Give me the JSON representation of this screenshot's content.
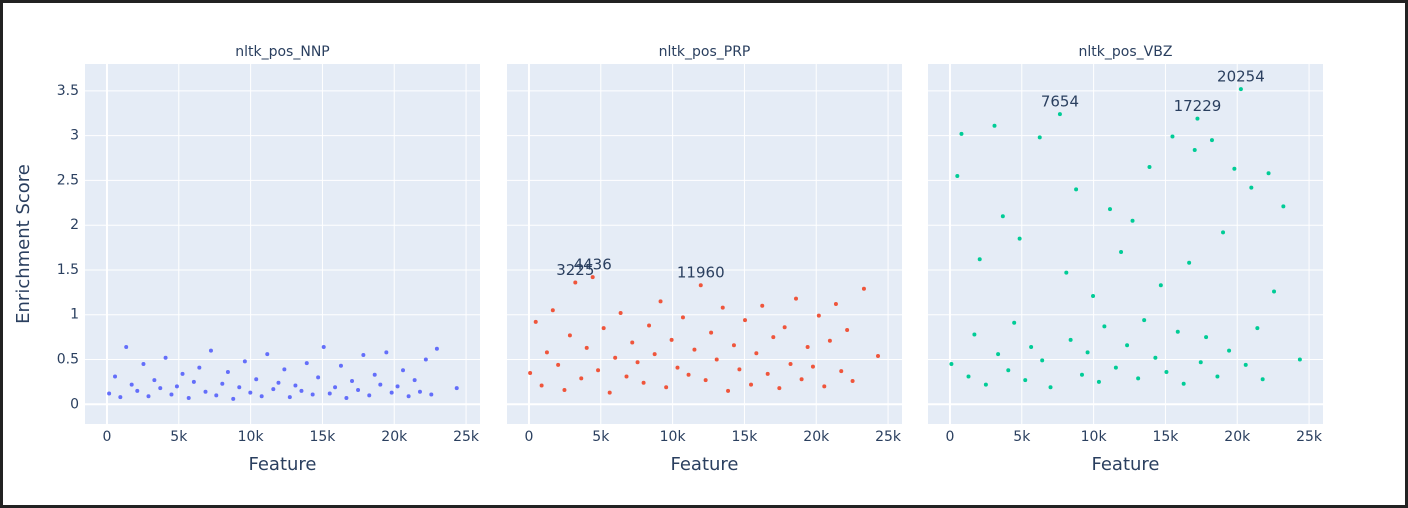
{
  "chart_data": [
    {
      "type": "scatter",
      "title": "nltk_pos_NNP",
      "x_label": "Feature",
      "y_label": "Enrichment Score",
      "color": "#636efa",
      "x": [
        150,
        560,
        930,
        1340,
        1720,
        2110,
        2540,
        2890,
        3300,
        3710,
        4080,
        4490,
        4870,
        5260,
        5690,
        6050,
        6430,
        6860,
        7240,
        7610,
        8030,
        8420,
        8790,
        9210,
        9600,
        9980,
        10390,
        10770,
        11160,
        11580,
        11940,
        12350,
        12730,
        13120,
        13540,
        13910,
        14320,
        14700,
        15090,
        15510,
        15880,
        16290,
        16670,
        17060,
        17480,
        17850,
        18260,
        18640,
        19030,
        19450,
        19820,
        20230,
        20610,
        21000,
        21420,
        21790,
        22200,
        22580,
        22970,
        24350
      ],
      "values": [
        0.12,
        0.31,
        0.08,
        0.64,
        0.22,
        0.15,
        0.45,
        0.09,
        0.27,
        0.18,
        0.52,
        0.11,
        0.2,
        0.34,
        0.07,
        0.25,
        0.41,
        0.14,
        0.6,
        0.1,
        0.23,
        0.36,
        0.06,
        0.19,
        0.48,
        0.13,
        0.28,
        0.09,
        0.56,
        0.17,
        0.24,
        0.39,
        0.08,
        0.21,
        0.15,
        0.46,
        0.11,
        0.3,
        0.64,
        0.12,
        0.19,
        0.43,
        0.07,
        0.26,
        0.16,
        0.55,
        0.1,
        0.33,
        0.22,
        0.58,
        0.13,
        0.2,
        0.38,
        0.09,
        0.27,
        0.14,
        0.5,
        0.11,
        0.62,
        0.18
      ],
      "xlim": [
        -1530,
        25970
      ],
      "ylim": [
        -0.22,
        3.8
      ],
      "grid": true,
      "xticks": [
        0,
        {
          "value": 5000,
          "label": "5k"
        },
        {
          "value": 10000,
          "label": "10k"
        },
        {
          "value": 15000,
          "label": "15k"
        },
        {
          "value": 20000,
          "label": "20k"
        },
        {
          "value": 25000,
          "label": "25k"
        }
      ],
      "yticks": [
        0,
        0.5,
        1,
        1.5,
        2,
        2.5,
        3,
        3.5
      ],
      "annotations": []
    },
    {
      "type": "scatter",
      "title": "nltk_pos_PRP",
      "x_label": "Feature",
      "color": "#ef553b",
      "x": [
        80,
        470,
        880,
        1250,
        1660,
        2030,
        2470,
        2850,
        3225,
        3640,
        4020,
        4436,
        4810,
        5200,
        5620,
        6000,
        6380,
        6790,
        7190,
        7560,
        7980,
        8360,
        8750,
        9160,
        9550,
        9930,
        10340,
        10720,
        11110,
        11520,
        11960,
        12300,
        12680,
        13070,
        13490,
        13860,
        14270,
        14650,
        15040,
        15460,
        15830,
        16240,
        16620,
        17010,
        17430,
        17800,
        18210,
        18590,
        18980,
        19400,
        19770,
        20180,
        20560,
        20950,
        21370,
        21740,
        22150,
        22530,
        23320,
        24300
      ],
      "values": [
        0.35,
        0.92,
        0.21,
        0.58,
        1.05,
        0.44,
        0.16,
        0.77,
        1.36,
        0.29,
        0.63,
        1.42,
        0.38,
        0.85,
        0.13,
        0.52,
        1.02,
        0.31,
        0.69,
        0.47,
        0.24,
        0.88,
        0.56,
        1.15,
        0.19,
        0.72,
        0.41,
        0.97,
        0.33,
        0.61,
        1.33,
        0.27,
        0.8,
        0.5,
        1.08,
        0.15,
        0.66,
        0.39,
        0.94,
        0.22,
        0.57,
        1.1,
        0.34,
        0.75,
        0.18,
        0.86,
        0.45,
        1.18,
        0.28,
        0.64,
        0.42,
        0.99,
        0.2,
        0.71,
        1.12,
        0.37,
        0.83,
        0.26,
        1.29,
        0.54
      ],
      "xlim": [
        -1530,
        25970
      ],
      "grid": true,
      "xticks": [
        0,
        {
          "value": 5000,
          "label": "5k"
        },
        {
          "value": 10000,
          "label": "10k"
        },
        {
          "value": 15000,
          "label": "15k"
        },
        {
          "value": 20000,
          "label": "20k"
        },
        {
          "value": 25000,
          "label": "25k"
        }
      ],
      "annotations": [
        {
          "text": "3225",
          "x": 3225,
          "y": 1.36
        },
        {
          "text": "4436",
          "x": 4436,
          "y": 1.42
        },
        {
          "text": "11960",
          "x": 11960,
          "y": 1.33
        }
      ]
    },
    {
      "type": "scatter",
      "title": "nltk_pos_VBZ",
      "x_label": "Feature",
      "color": "#00cc96",
      "x": [
        100,
        510,
        800,
        1290,
        1700,
        2070,
        2500,
        3100,
        3350,
        3680,
        4060,
        4470,
        4850,
        5240,
        5650,
        6250,
        6420,
        7000,
        7654,
        8100,
        8400,
        8780,
        9190,
        9580,
        9960,
        10370,
        10750,
        11140,
        11550,
        11910,
        12330,
        12710,
        13100,
        13520,
        13890,
        14300,
        14680,
        15070,
        15490,
        15860,
        16270,
        16650,
        17040,
        17229,
        17460,
        17830,
        18240,
        18620,
        19010,
        19430,
        19800,
        20254,
        20590,
        20980,
        21400,
        21770,
        22180,
        22560,
        23210,
        24360
      ],
      "values": [
        0.45,
        2.55,
        3.02,
        0.31,
        0.78,
        1.62,
        0.22,
        3.11,
        0.56,
        2.1,
        0.38,
        0.91,
        1.85,
        0.27,
        0.64,
        2.98,
        0.49,
        0.19,
        3.24,
        1.47,
        0.72,
        2.4,
        0.33,
        0.58,
        1.21,
        0.25,
        0.87,
        2.18,
        0.41,
        1.7,
        0.66,
        2.05,
        0.29,
        0.94,
        2.65,
        0.52,
        1.33,
        0.36,
        2.99,
        0.81,
        0.23,
        1.58,
        2.84,
        3.19,
        0.47,
        0.75,
        2.95,
        0.31,
        1.92,
        0.6,
        2.63,
        3.52,
        0.44,
        2.42,
        0.85,
        0.28,
        2.58,
        1.26,
        2.21,
        0.5
      ],
      "xlim": [
        -1530,
        25970
      ],
      "grid": true,
      "xticks": [
        0,
        {
          "value": 5000,
          "label": "5k"
        },
        {
          "value": 10000,
          "label": "10k"
        },
        {
          "value": 15000,
          "label": "15k"
        },
        {
          "value": 20000,
          "label": "20k"
        },
        {
          "value": 25000,
          "label": "25k"
        }
      ],
      "annotations": [
        {
          "text": "7654",
          "x": 7654,
          "y": 3.24
        },
        {
          "text": "17229",
          "x": 17229,
          "y": 3.19
        },
        {
          "text": "20254",
          "x": 20254,
          "y": 3.52
        }
      ]
    }
  ]
}
